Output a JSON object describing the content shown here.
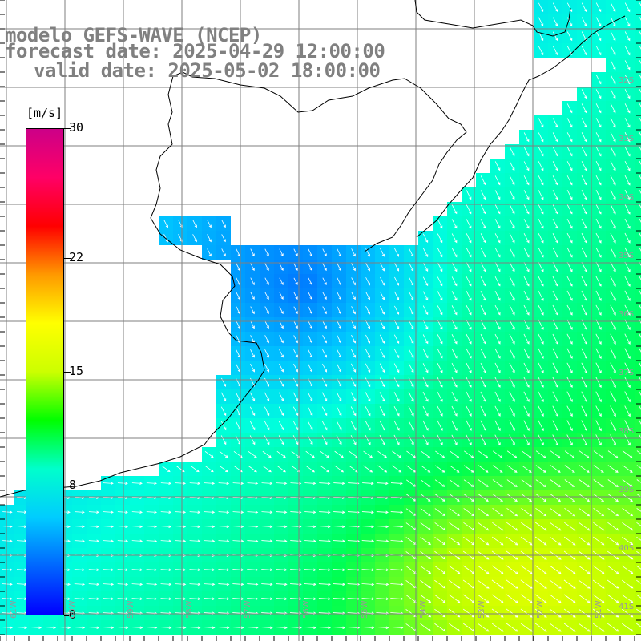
{
  "titles": {
    "model": "modelo GEFS-WAVE (NCEP)",
    "forecast": "forecast date: 2025-04-29 12:00:00",
    "valid": "valid date: 2025-05-02 18:00:00"
  },
  "colorbar": {
    "unit": "[m/s]",
    "ticks": [
      "30",
      "22",
      "15",
      "8",
      "0"
    ],
    "tick_values": [
      30,
      22,
      15,
      8,
      0
    ],
    "range": [
      0,
      30
    ],
    "colors": [
      "#0000ff",
      "#0066ff",
      "#00ccff",
      "#00ffcc",
      "#00ff00",
      "#ccff00",
      "#ffff00",
      "#ff9900",
      "#ff0000",
      "#ff0066",
      "#cc0088"
    ]
  },
  "lat_labels": [
    "32S",
    "33S",
    "34S",
    "35S",
    "36S",
    "37S",
    "38S",
    "39S",
    "40S",
    "41S"
  ],
  "lon_labels": [
    "61W",
    "60W",
    "59W",
    "58W",
    "57W",
    "56W",
    "55W",
    "54W",
    "53W",
    "52W",
    "51W"
  ],
  "colors": {
    "land": "#ffffff",
    "grid": "#7f7f7f",
    "coast": "#000000",
    "arrows": "#ffffff",
    "title": "#808080"
  }
}
